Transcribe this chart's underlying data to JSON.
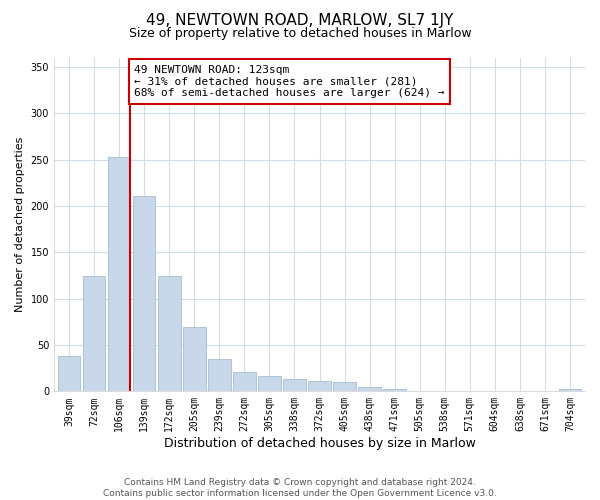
{
  "title": "49, NEWTOWN ROAD, MARLOW, SL7 1JY",
  "subtitle": "Size of property relative to detached houses in Marlow",
  "xlabel": "Distribution of detached houses by size in Marlow",
  "ylabel": "Number of detached properties",
  "bar_labels": [
    "39sqm",
    "72sqm",
    "106sqm",
    "139sqm",
    "172sqm",
    "205sqm",
    "239sqm",
    "272sqm",
    "305sqm",
    "338sqm",
    "372sqm",
    "405sqm",
    "438sqm",
    "471sqm",
    "505sqm",
    "538sqm",
    "571sqm",
    "604sqm",
    "638sqm",
    "671sqm",
    "704sqm"
  ],
  "bar_values": [
    38,
    124,
    253,
    211,
    124,
    69,
    35,
    21,
    17,
    13,
    11,
    10,
    5,
    2,
    0,
    0,
    0,
    0,
    0,
    0,
    3
  ],
  "bar_color": "#c8d8ea",
  "bar_edge_color": "#9ab4cc",
  "vline_color": "#cc0000",
  "annotation_text": "49 NEWTOWN ROAD: 123sqm\n← 31% of detached houses are smaller (281)\n68% of semi-detached houses are larger (624) →",
  "annotation_box_color": "#ffffff",
  "annotation_box_edge": "#cc0000",
  "ylim": [
    0,
    360
  ],
  "yticks": [
    0,
    50,
    100,
    150,
    200,
    250,
    300,
    350
  ],
  "footer_text": "Contains HM Land Registry data © Crown copyright and database right 2024.\nContains public sector information licensed under the Open Government Licence v3.0.",
  "background_color": "#ffffff",
  "plot_bg_color": "#ffffff",
  "title_fontsize": 11,
  "subtitle_fontsize": 9,
  "xlabel_fontsize": 9,
  "ylabel_fontsize": 8,
  "tick_fontsize": 7,
  "footer_fontsize": 6.5,
  "annotation_fontsize": 8
}
